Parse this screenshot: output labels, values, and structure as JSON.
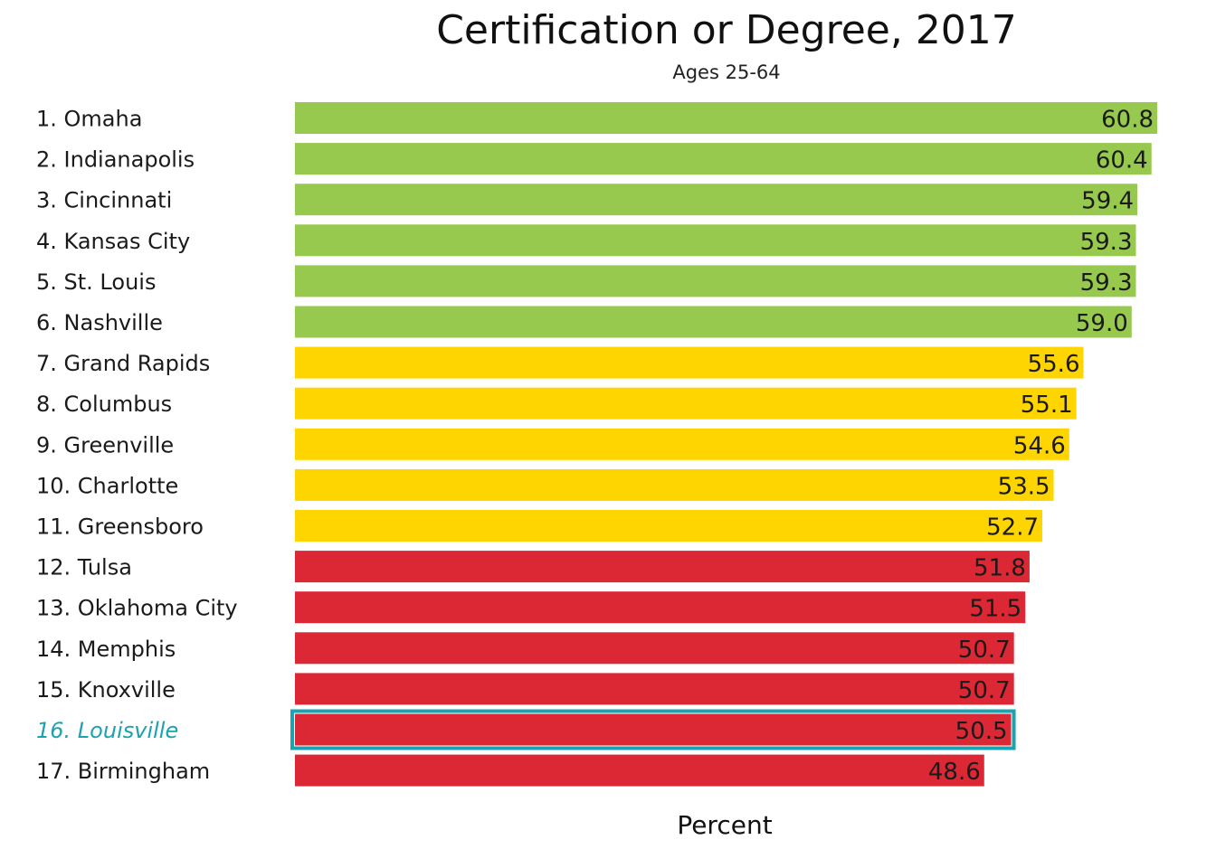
{
  "chart_data": {
    "type": "bar",
    "orientation": "horizontal",
    "title": "Certification or Degree, 2017",
    "subtitle": "Ages 25-64",
    "xlabel": "Percent",
    "ylabel": "",
    "xlim": [
      0,
      60.8
    ],
    "grid": false,
    "legend": "none",
    "highlight_category": "16. Louisville",
    "highlight_color": "#1aa3b0",
    "tier_colors": {
      "top": "#97c94e",
      "middle": "#ffd500",
      "bottom": "#dc2834"
    },
    "categories": [
      "1. Omaha",
      "2. Indianapolis",
      "3. Cincinnati",
      "4. Kansas City",
      "5. St. Louis",
      "6. Nashville",
      "7. Grand Rapids",
      "8. Columbus",
      "9. Greenville",
      "10. Charlotte",
      "11. Greensboro",
      "12. Tulsa",
      "13. Oklahoma City",
      "14. Memphis",
      "15. Knoxville",
      "16. Louisville",
      "17. Birmingham"
    ],
    "values": [
      60.8,
      60.4,
      59.4,
      59.3,
      59.3,
      59.0,
      55.6,
      55.1,
      54.6,
      53.5,
      52.7,
      51.8,
      51.5,
      50.7,
      50.7,
      50.5,
      48.6
    ],
    "value_labels": [
      "60.8",
      "60.4",
      "59.4",
      "59.3",
      "59.3",
      "59.0",
      "55.6",
      "55.1",
      "54.6",
      "53.5",
      "52.7",
      "51.8",
      "51.5",
      "50.7",
      "50.7",
      "50.5",
      "48.6"
    ],
    "tiers": [
      "top",
      "top",
      "top",
      "top",
      "top",
      "top",
      "middle",
      "middle",
      "middle",
      "middle",
      "middle",
      "bottom",
      "bottom",
      "bottom",
      "bottom",
      "bottom",
      "bottom"
    ]
  }
}
